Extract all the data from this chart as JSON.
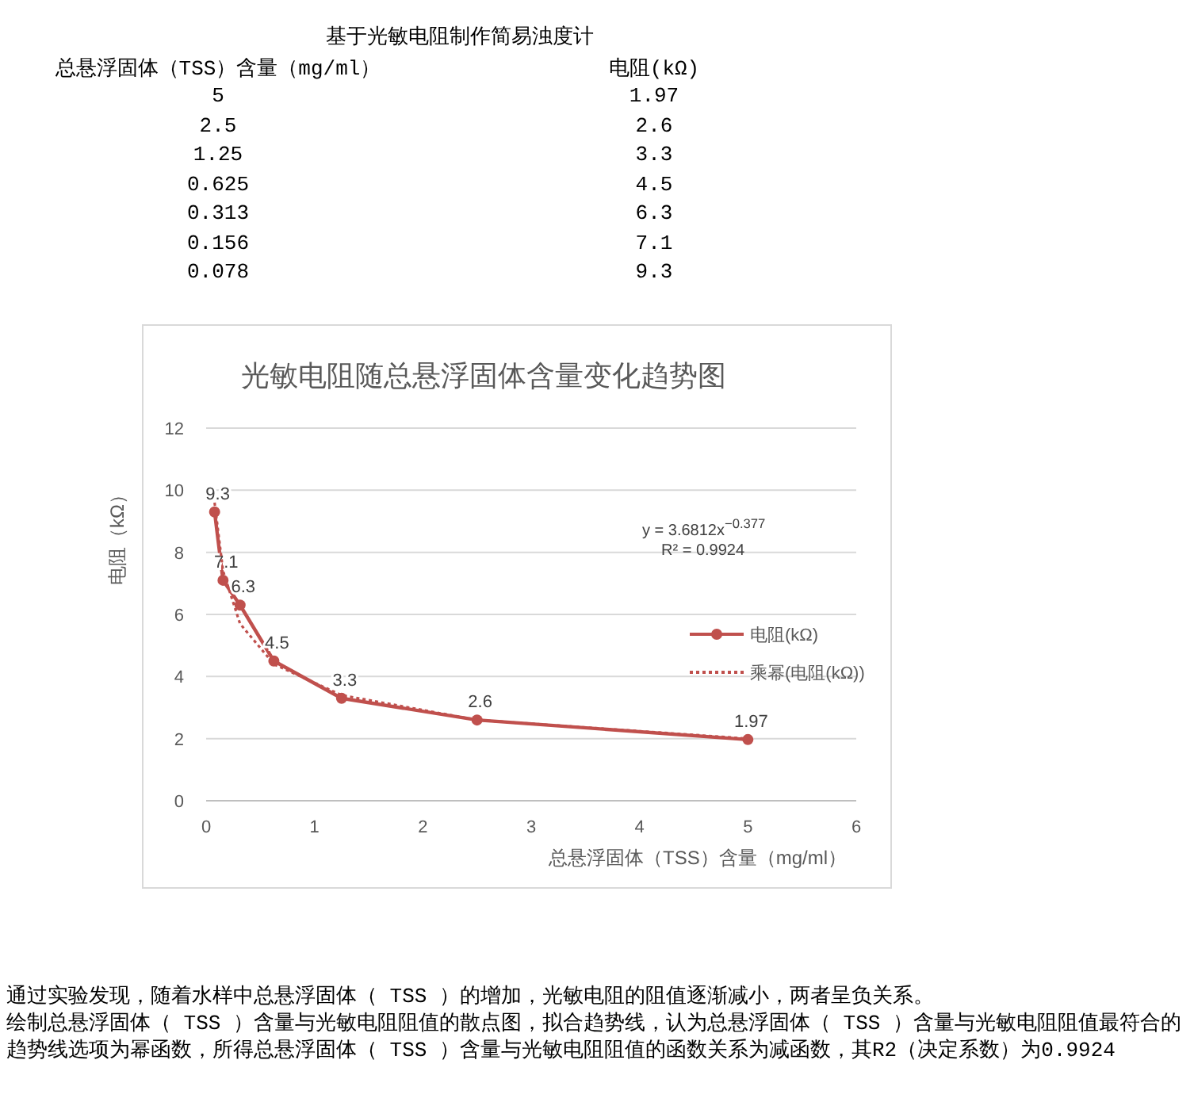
{
  "chart_data": {
    "type": "line",
    "subtitle": "基于光敏电阻制作简易浊度计",
    "title": "光敏电阻随总悬浮固体含量变化趋势图",
    "xlabel": "总悬浮固体（TSS）含量（mg/ml）",
    "ylabel": "电阻（kΩ）",
    "annotations": [
      "总悬浮固体（TSS）含量（mg/ml）",
      "电阻(kΩ)",
      "y = 3.6812x$^{−0.377}$",
      "R² = 0.9924",
      "通过实验发现，随着水样中总悬浮固体（ TSS ）的增加，光敏电阻的阻值逐渐减小，两者呈负关系。",
      "绘制总悬浮固体（ TSS ）含量与光敏电阻阻值的散点图，拟合趋势线，认为总悬浮固体（ TSS ）含量与光敏电阻阻值最符合的趋势线选项为幂函数，所得总悬浮固体（ TSS ）含量与光敏电阻阻值的函数关系为减函数，其R2（决定系数）为0.9924",
      "5",
      "1.97",
      "2.5",
      "2.6",
      "1.25",
      "3.3",
      "0.625",
      "4.5",
      "0.313",
      "6.3",
      "0.156",
      "7.1",
      "0.078",
      "9.3"
    ],
    "series": [
      {
        "name": "电阻(kΩ)",
        "color": "#c0504d",
        "marker": "circle",
        "line_style": "solid",
        "x": [
          5,
          2.5,
          1.25,
          0.625,
          0.313,
          0.156,
          0.078
        ],
        "values": [
          1.97,
          2.6,
          3.3,
          4.5,
          6.3,
          7.1,
          9.3
        ],
        "value_labels": [
          "1.97",
          "2.6",
          "3.3",
          "4.5",
          "6.3",
          "7.1",
          "9.3"
        ]
      },
      {
        "name": "乘幂(电阻(kΩ))",
        "color": "#c0504d",
        "marker": "none",
        "line_style": "dotted",
        "x": [
          0.078,
          0.156,
          0.313,
          0.625,
          1.25,
          2.5,
          5
        ],
        "values": [
          9.6,
          7.4,
          5.7,
          4.4,
          3.4,
          2.6,
          2.0
        ]
      }
    ],
    "xlim": [
      0,
      6
    ],
    "xticks": [
      0,
      1,
      2,
      3,
      4,
      5,
      6
    ],
    "ylim": [
      0,
      12
    ],
    "yticks": [
      0,
      2,
      4,
      6,
      8,
      10,
      12
    ],
    "grid": "y",
    "legend": "right"
  }
}
